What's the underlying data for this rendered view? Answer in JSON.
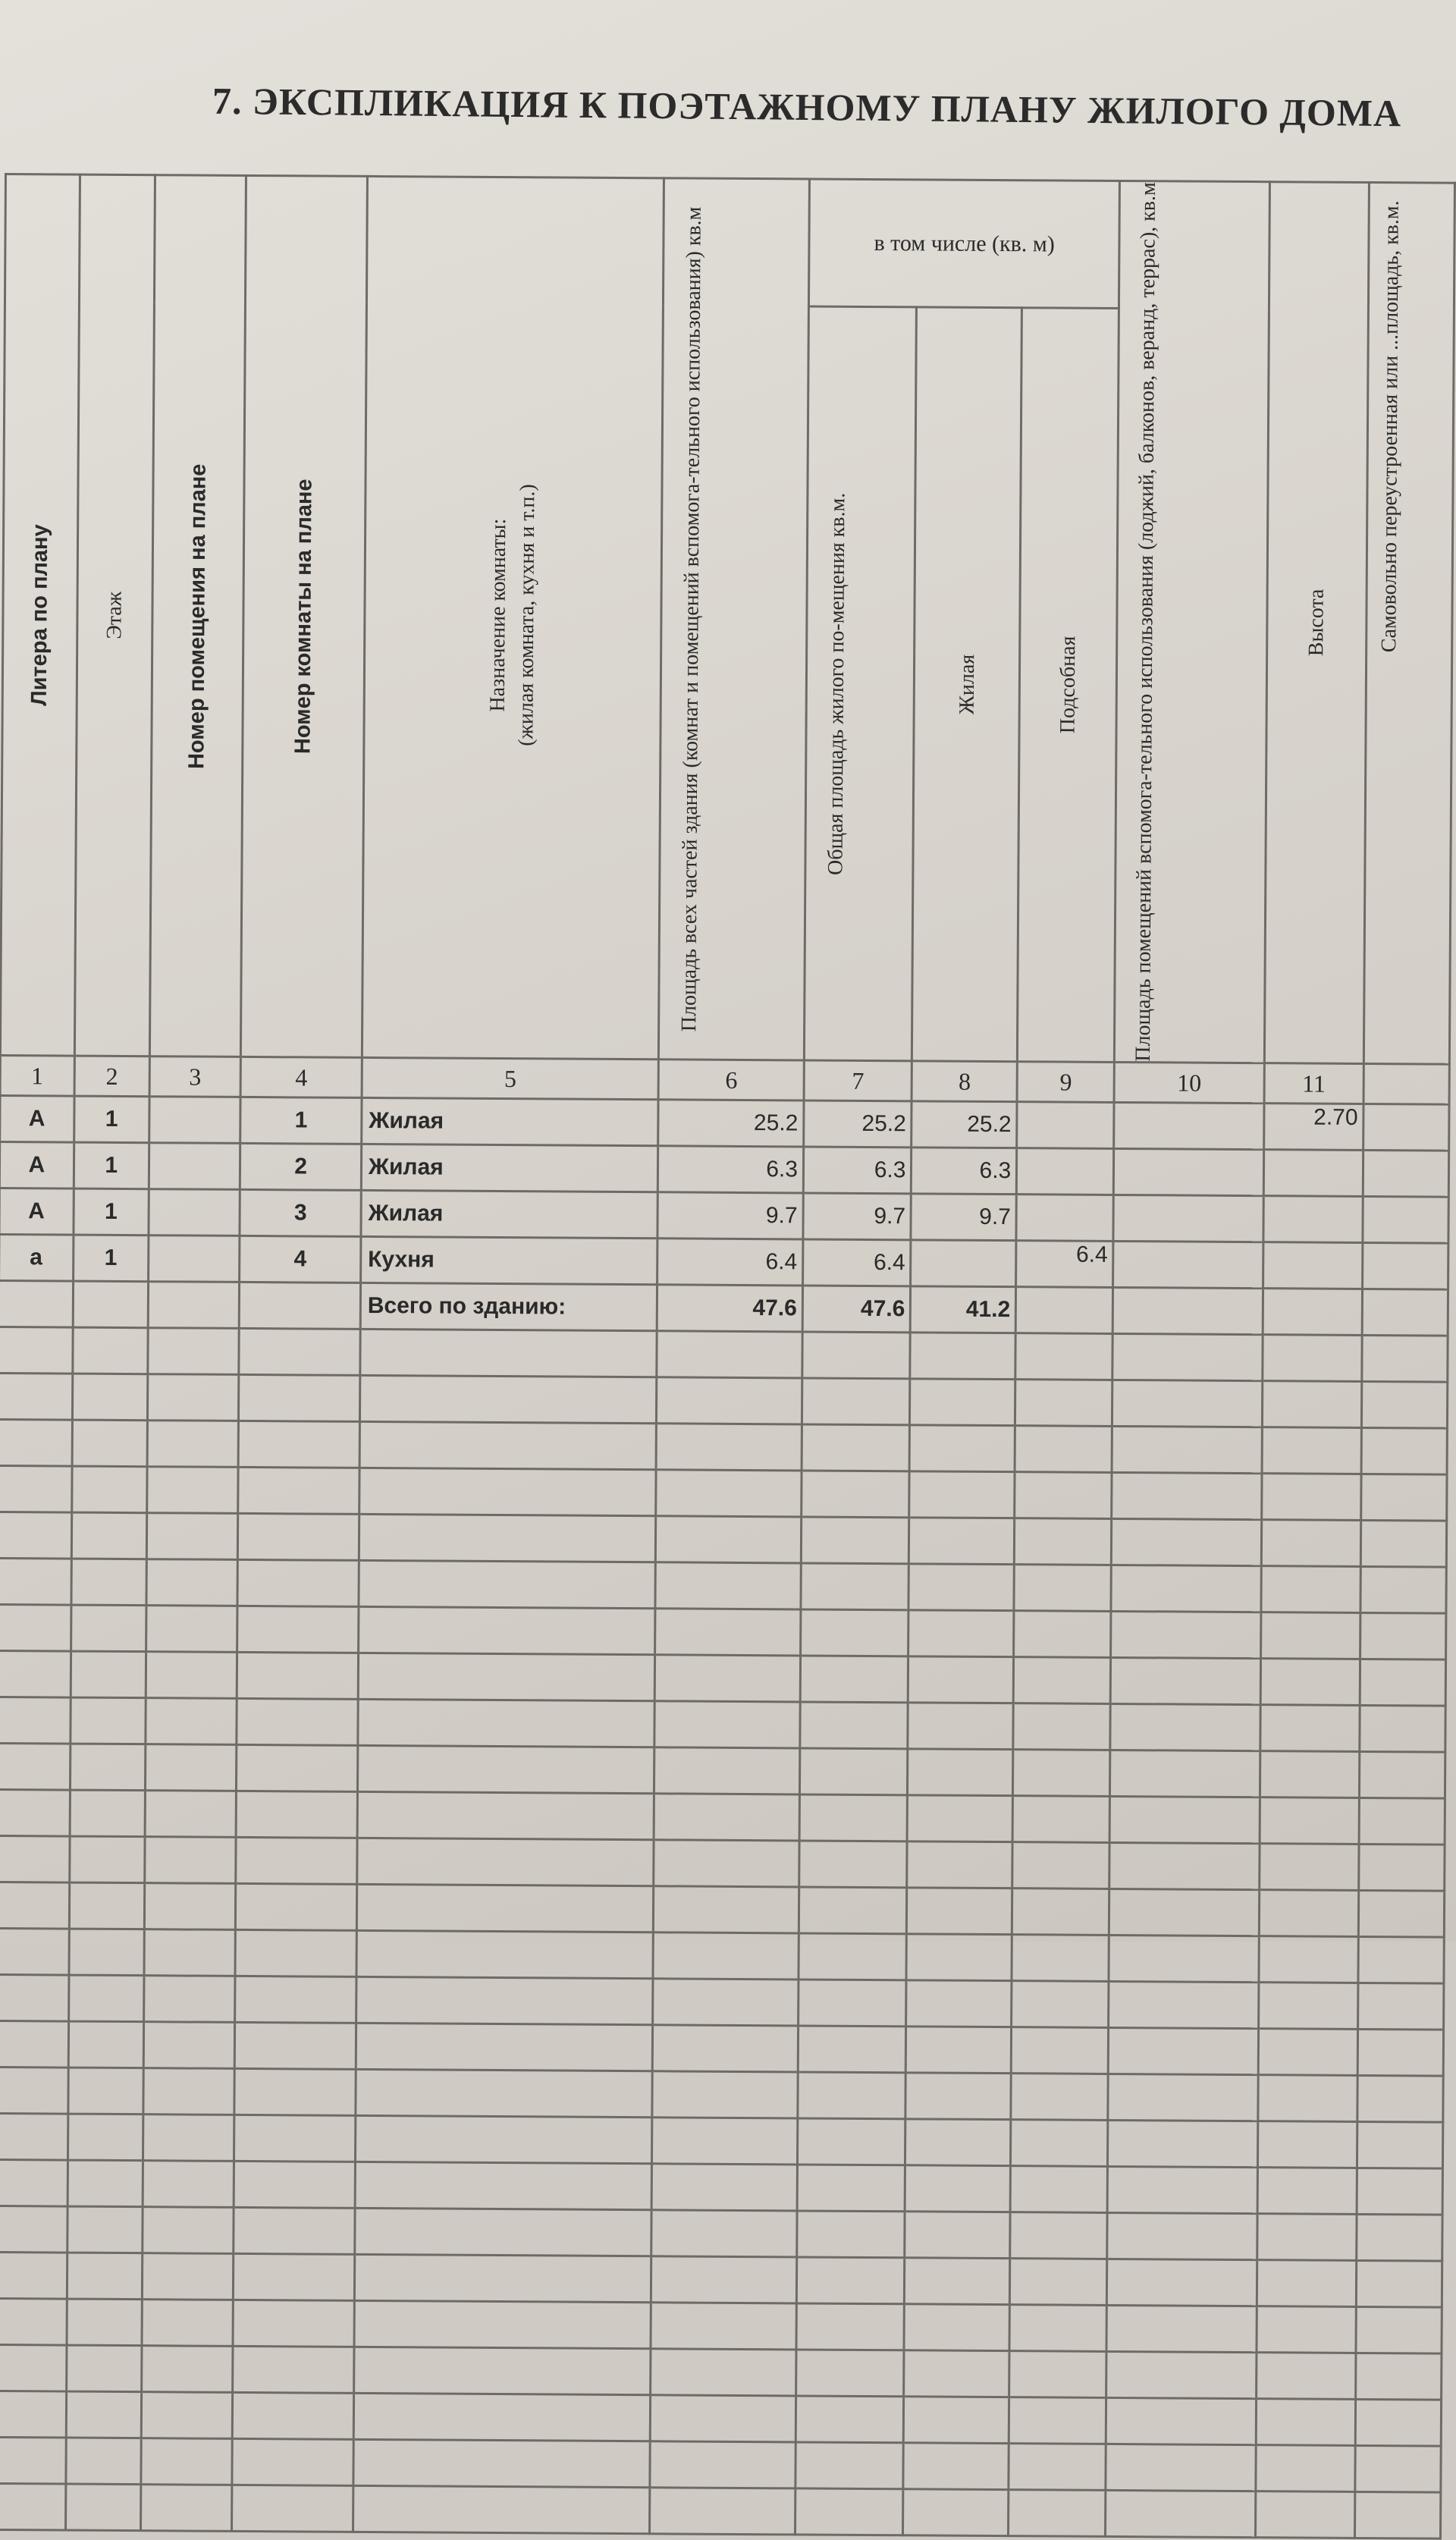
{
  "title": "7. ЭКСПЛИКАЦИЯ К ПОЭТАЖНОМУ ПЛАНУ ЖИЛОГО ДОМА",
  "headers": {
    "c1": "Литера по плану",
    "c2": "Этаж",
    "c3": "Номер помещения на плане",
    "c4": "Номер комнаты на плане",
    "c5a": "Назначение комнаты:",
    "c5b": "(жилая комната, кухня и т.п.)",
    "c6": "Площадь всех частей здания (комнат и помещений вспомога-тельного использования) кв.м",
    "group": "в том числе (кв. м)",
    "c7": "Общая площадь жилого по-мещения кв.м.",
    "c8": "Жилая",
    "c9": "Подсобная",
    "c10": "Площадь помещений вспомога-тельного использования (лоджий, балконов, веранд, террас), кв.м",
    "c11": "Высота",
    "c12": "Самовольно переустроенная или ...площадь, кв.м."
  },
  "column_numbers": [
    "1",
    "2",
    "3",
    "4",
    "5",
    "6",
    "7",
    "8",
    "9",
    "10",
    "11",
    ""
  ],
  "rows": [
    {
      "litera": "А",
      "floor": "1",
      "premise": "",
      "room": "1",
      "purpose": "Жилая",
      "total": "25.2",
      "general": "25.2",
      "living": "25.2",
      "aux": "",
      "auxuse": "",
      "height": "2.70",
      "unauth": ""
    },
    {
      "litera": "А",
      "floor": "1",
      "premise": "",
      "room": "2",
      "purpose": "Жилая",
      "total": "6.3",
      "general": "6.3",
      "living": "6.3",
      "aux": "",
      "auxuse": "",
      "height": "",
      "unauth": ""
    },
    {
      "litera": "А",
      "floor": "1",
      "premise": "",
      "room": "3",
      "purpose": "Жилая",
      "total": "9.7",
      "general": "9.7",
      "living": "9.7",
      "aux": "",
      "auxuse": "",
      "height": "",
      "unauth": ""
    },
    {
      "litera": "а",
      "floor": "1",
      "premise": "",
      "room": "4",
      "purpose": "Кухня",
      "total": "6.4",
      "general": "6.4",
      "living": "",
      "aux": "6.4",
      "auxuse": "",
      "height": "",
      "unauth": ""
    }
  ],
  "total": {
    "label": "Всего по зданию:",
    "total": "47.6",
    "general": "47.6",
    "living": "41.2"
  }
}
